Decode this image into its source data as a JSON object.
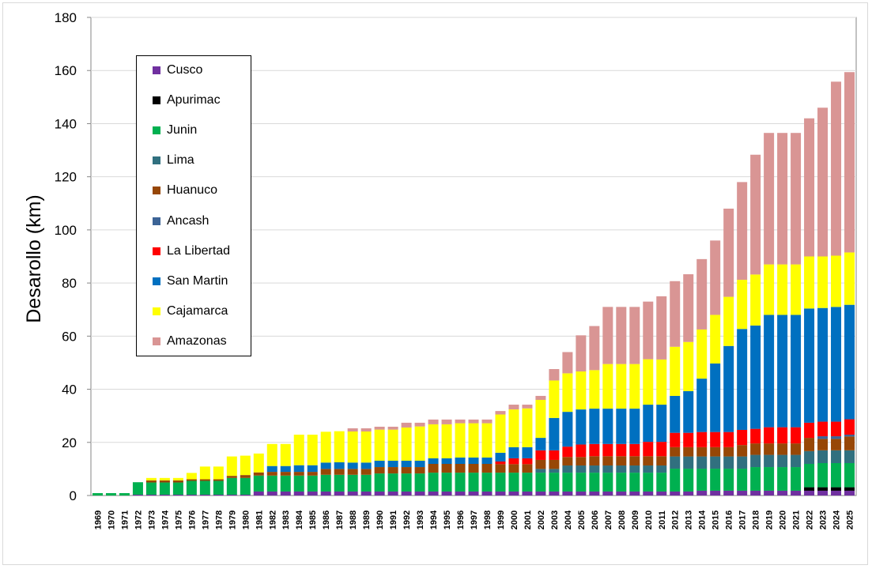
{
  "chart_data": {
    "type": "bar",
    "stacked": true,
    "title": "",
    "xlabel": "",
    "ylabel": "Desarollo (km)",
    "ylim": [
      0,
      180
    ],
    "yticks": [
      0,
      20,
      40,
      60,
      80,
      100,
      120,
      140,
      160,
      180
    ],
    "grid": true,
    "legend_position": "upper-left-inside",
    "categories": [
      "1969",
      "1970",
      "1971",
      "1972",
      "1973",
      "1974",
      "1975",
      "1976",
      "1977",
      "1978",
      "1979",
      "1980",
      "1981",
      "1982",
      "1983",
      "1984",
      "1985",
      "1986",
      "1987",
      "1988",
      "1989",
      "1990",
      "1991",
      "1992",
      "1993",
      "1994",
      "1995",
      "1996",
      "1997",
      "1998",
      "1999",
      "2000",
      "2001",
      "2002",
      "2003",
      "2004",
      "2005",
      "2006",
      "2007",
      "2008",
      "2009",
      "2010",
      "2011",
      "2012",
      "2013",
      "2014",
      "2015",
      "2016",
      "2017",
      "2018",
      "2019",
      "2020",
      "2021",
      "2022",
      "2023",
      "2024",
      "2025"
    ],
    "series": [
      {
        "name": "Cusco",
        "color": "#7030A0",
        "values": [
          0,
          0,
          0,
          0.3,
          0.3,
          0.3,
          0.3,
          0.3,
          0.3,
          0.3,
          0.3,
          0.3,
          1.5,
          1.5,
          1.5,
          1.5,
          1.5,
          1.5,
          1.5,
          1.5,
          1.5,
          1.5,
          1.5,
          1.5,
          1.5,
          1.5,
          1.5,
          1.5,
          1.5,
          1.5,
          1.5,
          1.5,
          1.5,
          1.5,
          1.5,
          1.5,
          1.5,
          1.5,
          1.5,
          1.5,
          1.5,
          1.5,
          1.5,
          1.5,
          1.5,
          1.8,
          1.8,
          1.8,
          1.8,
          1.8,
          1.8,
          1.8,
          1.8,
          1.8,
          1.8,
          1.8,
          1.8
        ]
      },
      {
        "name": "Apurimac",
        "color": "#000000",
        "values": [
          0,
          0,
          0,
          0,
          0,
          0,
          0,
          0,
          0,
          0,
          0,
          0,
          0,
          0,
          0,
          0,
          0,
          0,
          0,
          0,
          0,
          0,
          0,
          0,
          0,
          0,
          0,
          0,
          0,
          0,
          0,
          0,
          0,
          0,
          0,
          0,
          0,
          0,
          0,
          0,
          0,
          0,
          0,
          0,
          0,
          0,
          0,
          0,
          0,
          0,
          0,
          0,
          0,
          1.3,
          1.3,
          1.3,
          1.3
        ]
      },
      {
        "name": "Junin",
        "color": "#00B050",
        "values": [
          0.9,
          0.9,
          0.9,
          4.7,
          4.6,
          4.6,
          4.6,
          5.2,
          5.2,
          5.2,
          6.3,
          6.3,
          6.0,
          6.0,
          6.0,
          6.0,
          6.0,
          6.3,
          6.3,
          6.3,
          6.3,
          6.8,
          6.8,
          6.8,
          6.8,
          7.1,
          7.1,
          7.1,
          7.1,
          7.1,
          7.1,
          7.1,
          7.1,
          7.1,
          7.1,
          7.1,
          7.1,
          7.1,
          7.1,
          7.1,
          7.1,
          7.1,
          7.1,
          8.6,
          8.6,
          8.3,
          8.3,
          8.3,
          8.3,
          8.9,
          8.9,
          8.9,
          8.9,
          8.8,
          9.1,
          9.1,
          9.1
        ]
      },
      {
        "name": "Lima",
        "color": "#31707F",
        "values": [
          0,
          0,
          0,
          0,
          0,
          0,
          0,
          0,
          0,
          0,
          0,
          0,
          0,
          0,
          0,
          0,
          0,
          0,
          0,
          0,
          0,
          0,
          0,
          0,
          0,
          0,
          0,
          0,
          0,
          0,
          0,
          0,
          0,
          1.4,
          1.4,
          2.7,
          2.7,
          2.7,
          2.7,
          2.7,
          2.7,
          2.7,
          2.7,
          4.6,
          4.6,
          4.6,
          4.6,
          4.6,
          4.6,
          4.6,
          4.6,
          4.6,
          4.6,
          4.8,
          4.8,
          4.8,
          4.8
        ]
      },
      {
        "name": "Huanuco",
        "color": "#974706",
        "values": [
          0,
          0,
          0,
          0,
          0.8,
          0.8,
          0.8,
          0.6,
          0.6,
          0.6,
          0.8,
          1.1,
          1.2,
          1.4,
          1.4,
          1.4,
          1.4,
          2.2,
          2.2,
          2.2,
          2.2,
          2.4,
          2.4,
          2.4,
          2.4,
          3.3,
          3.3,
          3.3,
          3.3,
          3.3,
          3.2,
          3.2,
          3.2,
          3.4,
          3.4,
          3.2,
          3.2,
          3.5,
          3.5,
          3.5,
          3.5,
          3.5,
          3.5,
          3.5,
          3.5,
          3.5,
          3.5,
          3.5,
          4.3,
          4.3,
          4.3,
          4.3,
          4.3,
          5.0,
          4.3,
          4.3,
          5.2
        ]
      },
      {
        "name": "Ancash",
        "color": "#3C6496",
        "values": [
          0,
          0,
          0,
          0,
          0,
          0,
          0,
          0,
          0,
          0,
          0,
          0,
          0,
          0,
          0,
          0,
          0,
          0,
          0,
          0,
          0,
          0,
          0,
          0,
          0,
          0,
          0,
          0,
          0,
          0,
          0,
          0,
          0,
          0,
          0,
          0,
          0,
          0,
          0,
          0,
          0,
          0,
          0,
          0,
          0,
          0,
          0,
          0,
          0,
          0,
          0,
          0,
          0,
          0,
          1.0,
          1.0,
          0.7
        ]
      },
      {
        "name": "La Libertad",
        "color": "#FF0000",
        "values": [
          0,
          0,
          0,
          0,
          0,
          0,
          0,
          0,
          0,
          0,
          0,
          0,
          0,
          0,
          0,
          0,
          0,
          0,
          0,
          0,
          0,
          0,
          0,
          0,
          0,
          0,
          0,
          0,
          0,
          0,
          1.0,
          2.2,
          2.2,
          3.6,
          3.6,
          3.9,
          4.7,
          4.6,
          4.6,
          4.6,
          4.6,
          5.4,
          5.4,
          5.4,
          5.4,
          5.7,
          5.7,
          5.7,
          5.7,
          5.5,
          6.1,
          6.1,
          6.1,
          5.7,
          5.5,
          5.5,
          5.8
        ]
      },
      {
        "name": "San Martin",
        "color": "#0070C0",
        "values": [
          0,
          0,
          0,
          0,
          0,
          0,
          0,
          0,
          0,
          0,
          0,
          0,
          0,
          2.2,
          2.2,
          2.5,
          2.5,
          2.4,
          2.5,
          2.4,
          2.4,
          2.4,
          2.4,
          2.4,
          2.4,
          2.1,
          2.1,
          2.4,
          2.4,
          2.4,
          3.3,
          4.2,
          4.2,
          4.7,
          12.2,
          13.1,
          13.2,
          13.3,
          13.3,
          13.3,
          13.3,
          14.0,
          14.0,
          13.9,
          15.7,
          20.1,
          25.8,
          32.4,
          38.0,
          38.9,
          42.3,
          42.3,
          42.3,
          43.0,
          42.8,
          43.2,
          43.1
        ]
      },
      {
        "name": "Cajamarca",
        "color": "#FFFF00",
        "values": [
          0,
          0,
          0,
          0,
          0.9,
          0.9,
          0.9,
          2.4,
          4.8,
          4.8,
          7.3,
          7.3,
          7.1,
          8.3,
          8.3,
          11.5,
          11.5,
          11.6,
          11.7,
          11.7,
          11.7,
          11.7,
          11.7,
          12.5,
          12.9,
          12.8,
          12.8,
          12.9,
          12.9,
          12.9,
          14.4,
          14.2,
          14.6,
          14.3,
          14.1,
          14.5,
          14.3,
          14.5,
          16.8,
          16.8,
          16.8,
          17.1,
          17.0,
          18.5,
          18.5,
          18.5,
          18.3,
          18.5,
          18.5,
          19.2,
          19.0,
          19.0,
          19.0,
          19.6,
          19.4,
          19.3,
          19.7
        ]
      },
      {
        "name": "Amazonas",
        "color": "#D99594",
        "values": [
          0,
          0,
          0,
          0,
          0,
          0,
          0,
          0,
          0,
          0,
          0,
          0,
          0,
          0,
          0,
          0,
          0,
          0,
          0,
          1.2,
          1.2,
          1.1,
          1.1,
          1.8,
          1.4,
          1.8,
          1.8,
          1.4,
          1.4,
          1.4,
          1.3,
          1.8,
          1.4,
          1.5,
          4.3,
          8.0,
          13.6,
          16.6,
          21.5,
          21.5,
          21.5,
          21.7,
          23.8,
          24.7,
          25.5,
          26.5,
          28.0,
          33.2,
          36.8,
          45.1,
          49.5,
          49.5,
          49.5,
          52.0,
          56.0,
          65.5,
          67.9
        ]
      }
    ]
  }
}
